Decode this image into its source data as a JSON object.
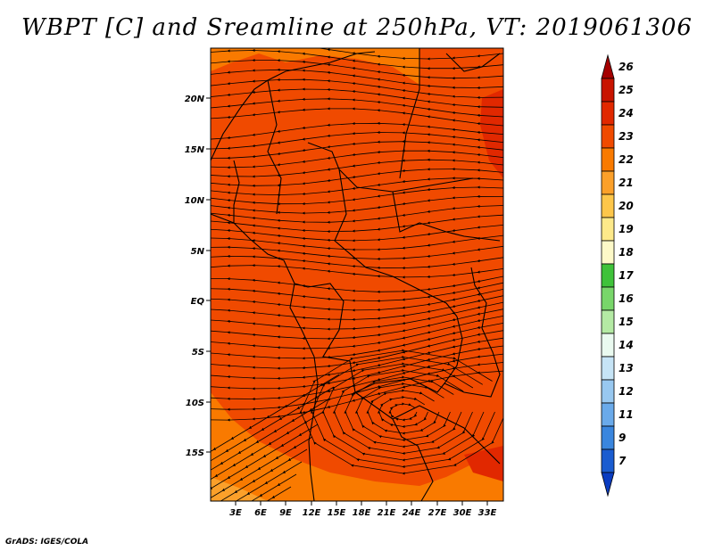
{
  "title": "WBPT [C] and Sreamline at 250hPa, VT: 2019061306",
  "credit": "GrADS: IGES/COLA",
  "map": {
    "lon_ticks": [
      "3E",
      "6E",
      "9E",
      "12E",
      "15E",
      "18E",
      "21E",
      "24E",
      "27E",
      "30E",
      "33E"
    ],
    "lat_ticks": [
      "20N",
      "15N",
      "10N",
      "5N",
      "EQ",
      "5S",
      "10S",
      "15S"
    ]
  },
  "colorbar": {
    "labels": [
      "26",
      "25",
      "24",
      "23",
      "22",
      "21",
      "20",
      "19",
      "18",
      "17",
      "16",
      "15",
      "14",
      "13",
      "12",
      "11",
      "9",
      "7"
    ],
    "colors": [
      "#a50000",
      "#c81400",
      "#e12800",
      "#f04a00",
      "#f97a00",
      "#fba02a",
      "#fdc64a",
      "#fde98a",
      "#fdf9c8",
      "#3fc23a",
      "#78d66a",
      "#b4eaa4",
      "#eafaf0",
      "#c6e4f6",
      "#98c8f0",
      "#6aaaea",
      "#3a86de",
      "#1a5cd0",
      "#0a3cc0"
    ]
  }
}
